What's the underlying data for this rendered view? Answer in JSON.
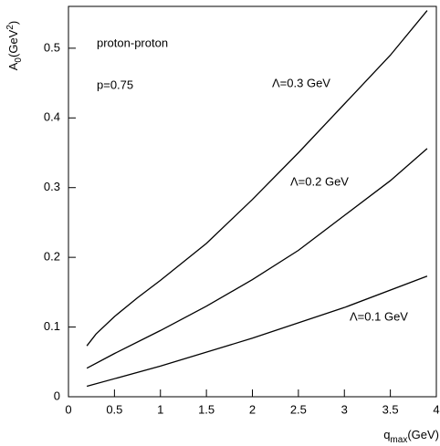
{
  "chart_data": {
    "type": "line",
    "annotations": [
      "proton-proton",
      "p=0.75"
    ],
    "xlabel": [
      "q",
      "max",
      "(GeV)"
    ],
    "ylabel": [
      "A",
      "0",
      "(GeV",
      "2",
      ")"
    ],
    "xlim": [
      0,
      4
    ],
    "ylim": [
      0,
      0.56
    ],
    "xticks": [
      0,
      0.5,
      1,
      1.5,
      2,
      2.5,
      3,
      3.5,
      4
    ],
    "yticks": [
      0,
      0.1,
      0.2,
      0.3,
      0.4,
      0.5
    ],
    "series": [
      {
        "name": "Λ=0.3 GeV",
        "color": "#000000",
        "x": [
          0.2,
          0.3,
          0.5,
          0.75,
          1,
          1.5,
          2,
          2.5,
          3,
          3.5,
          3.9
        ],
        "values": [
          0.073,
          0.09,
          0.115,
          0.142,
          0.167,
          0.22,
          0.283,
          0.35,
          0.42,
          0.49,
          0.554
        ]
      },
      {
        "name": "Λ=0.2 GeV",
        "color": "#000000",
        "x": [
          0.2,
          0.5,
          1,
          1.5,
          2,
          2.5,
          3,
          3.5,
          3.9
        ],
        "values": [
          0.041,
          0.062,
          0.095,
          0.13,
          0.168,
          0.21,
          0.26,
          0.31,
          0.356
        ]
      },
      {
        "name": "Λ=0.1 GeV",
        "color": "#000000",
        "x": [
          0.2,
          1,
          2,
          3,
          3.9
        ],
        "values": [
          0.015,
          0.044,
          0.084,
          0.128,
          0.173
        ]
      }
    ]
  }
}
